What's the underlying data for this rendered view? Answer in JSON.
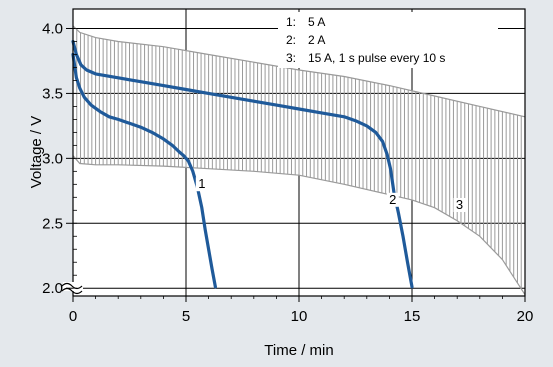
{
  "chart_data": {
    "type": "line",
    "title": "",
    "xlabel": "Time / min",
    "ylabel": "Voltage / V",
    "xlim": [
      0,
      20
    ],
    "ylim": [
      1.94,
      4.15
    ],
    "y_axis_break": true,
    "x_ticks": [
      {
        "value": 0,
        "label": "0"
      },
      {
        "value": 5,
        "label": "5"
      },
      {
        "value": 10,
        "label": "10"
      },
      {
        "value": 15,
        "label": "15"
      },
      {
        "value": 20,
        "label": "20"
      }
    ],
    "y_ticks": [
      {
        "value": 2.0,
        "label": "2.0"
      },
      {
        "value": 2.5,
        "label": "2.5"
      },
      {
        "value": 3.0,
        "label": "3.0"
      },
      {
        "value": 3.5,
        "label": "3.5"
      },
      {
        "value": 4.0,
        "label": "4.0"
      }
    ],
    "grid": true,
    "legend_position": "top-right",
    "legend": [
      {
        "number": "1:",
        "text": "5 A"
      },
      {
        "number": "2:",
        "text": "2 A"
      },
      {
        "number": "3:",
        "text": "15 A, 1 s pulse every 10 s"
      }
    ],
    "series": [
      {
        "name": "1",
        "curve_label": "1",
        "label_at": [
          5.7,
          2.77
        ],
        "color": "#1f5a9a",
        "points": [
          [
            0,
            3.8
          ],
          [
            0.15,
            3.62
          ],
          [
            0.3,
            3.54
          ],
          [
            0.5,
            3.47
          ],
          [
            0.8,
            3.41
          ],
          [
            1.2,
            3.36
          ],
          [
            1.6,
            3.32
          ],
          [
            2.0,
            3.3
          ],
          [
            2.5,
            3.27
          ],
          [
            3.0,
            3.24
          ],
          [
            3.5,
            3.2
          ],
          [
            4.0,
            3.15
          ],
          [
            4.4,
            3.1
          ],
          [
            4.7,
            3.05
          ],
          [
            4.9,
            3.02
          ],
          [
            5.1,
            2.98
          ],
          [
            5.3,
            2.9
          ],
          [
            5.5,
            2.78
          ],
          [
            5.7,
            2.62
          ],
          [
            5.85,
            2.45
          ],
          [
            6.0,
            2.3
          ],
          [
            6.15,
            2.15
          ],
          [
            6.3,
            2.01
          ]
        ]
      },
      {
        "name": "2",
        "curve_label": "2",
        "label_at": [
          14.15,
          2.65
        ],
        "color": "#1f5a9a",
        "points": [
          [
            0,
            3.9
          ],
          [
            0.15,
            3.8
          ],
          [
            0.35,
            3.72
          ],
          [
            0.6,
            3.68
          ],
          [
            1.0,
            3.65
          ],
          [
            2.0,
            3.62
          ],
          [
            3.0,
            3.59
          ],
          [
            4.0,
            3.56
          ],
          [
            5.0,
            3.53
          ],
          [
            6.0,
            3.5
          ],
          [
            7.0,
            3.47
          ],
          [
            8.0,
            3.44
          ],
          [
            9.0,
            3.41
          ],
          [
            10.0,
            3.38
          ],
          [
            11.0,
            3.35
          ],
          [
            12.0,
            3.32
          ],
          [
            12.5,
            3.29
          ],
          [
            13.0,
            3.25
          ],
          [
            13.4,
            3.2
          ],
          [
            13.7,
            3.13
          ],
          [
            13.9,
            3.03
          ],
          [
            14.05,
            2.92
          ],
          [
            14.2,
            2.74
          ],
          [
            14.4,
            2.58
          ],
          [
            14.6,
            2.4
          ],
          [
            14.8,
            2.2
          ],
          [
            15.0,
            2.01
          ]
        ]
      },
      {
        "name": "3",
        "curve_label": "3",
        "label_at": [
          17.1,
          2.61
        ],
        "color": "#9a9a9a",
        "pulse_interval_s": 10,
        "rest_upper": [
          [
            0,
            4.02
          ],
          [
            0.3,
            3.97
          ],
          [
            1,
            3.93
          ],
          [
            2,
            3.9
          ],
          [
            4,
            3.86
          ],
          [
            6,
            3.8
          ],
          [
            8,
            3.74
          ],
          [
            10,
            3.68
          ],
          [
            12,
            3.63
          ],
          [
            14,
            3.56
          ],
          [
            16,
            3.48
          ],
          [
            18,
            3.4
          ],
          [
            20,
            3.32
          ]
        ],
        "pulse_lower": [
          [
            0,
            3.02
          ],
          [
            0.3,
            2.96
          ],
          [
            1,
            2.95
          ],
          [
            2,
            2.95
          ],
          [
            4,
            2.94
          ],
          [
            6,
            2.92
          ],
          [
            8,
            2.9
          ],
          [
            10,
            2.87
          ],
          [
            12,
            2.8
          ],
          [
            14,
            2.72
          ],
          [
            15,
            2.68
          ],
          [
            16,
            2.62
          ],
          [
            17,
            2.52
          ],
          [
            18,
            2.4
          ],
          [
            19,
            2.22
          ],
          [
            20,
            1.95
          ]
        ]
      }
    ]
  }
}
